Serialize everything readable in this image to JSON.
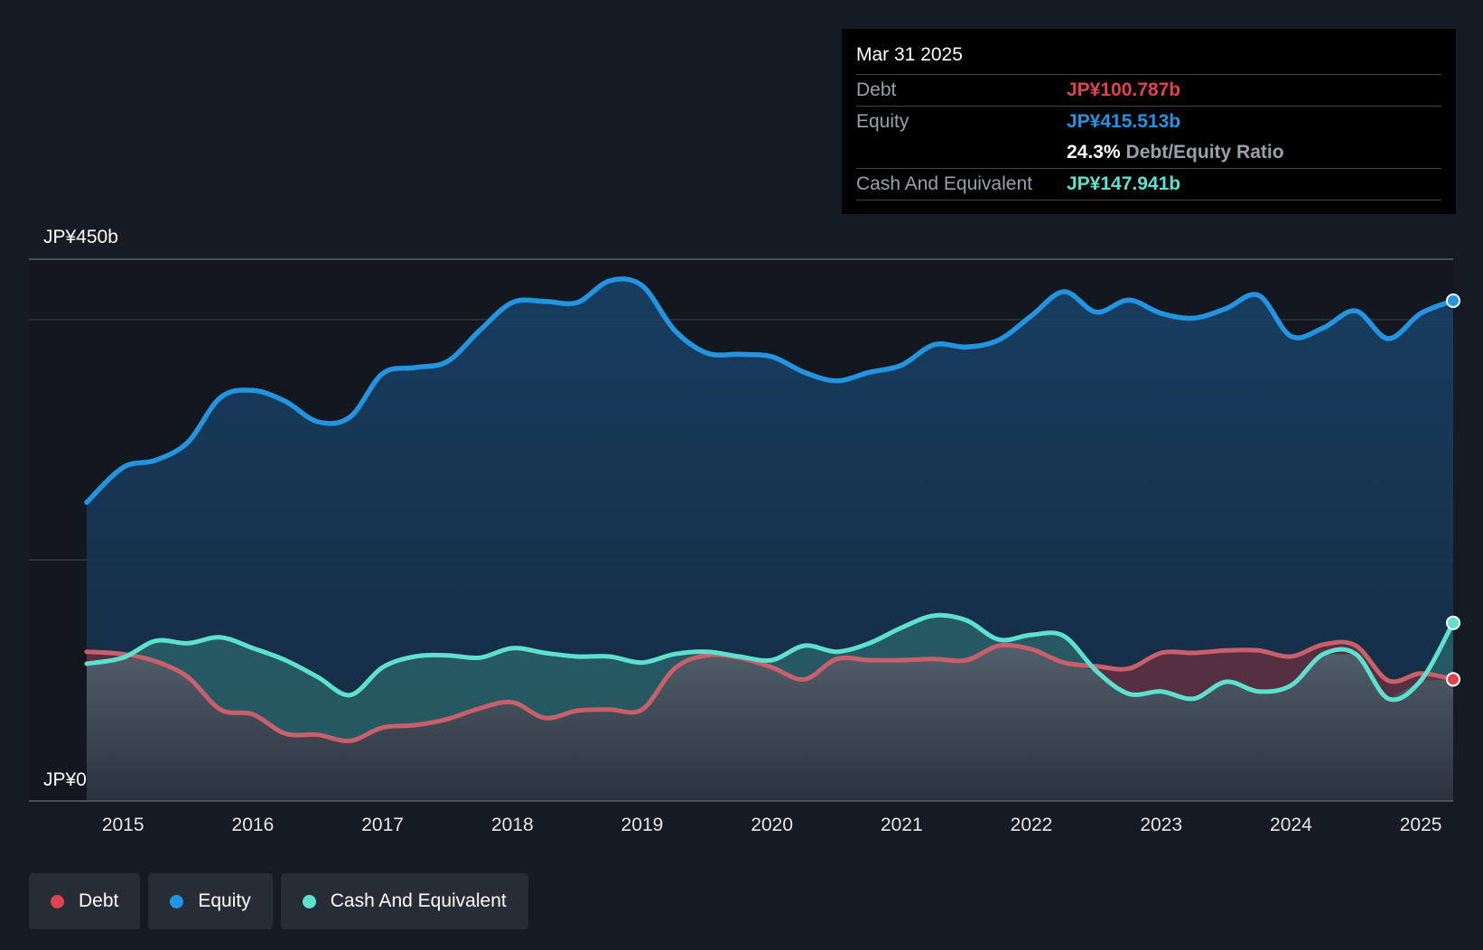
{
  "tooltip": {
    "date": "Mar 31 2025",
    "debt_label": "Debt",
    "debt_value": "JP¥100.787b",
    "equity_label": "Equity",
    "equity_value": "JP¥415.513b",
    "ratio_value": "24.3%",
    "ratio_label": "Debt/Equity Ratio",
    "cash_label": "Cash And Equivalent",
    "cash_value": "JP¥147.941b"
  },
  "legend": [
    {
      "label": "Debt",
      "color": "#e0424f"
    },
    {
      "label": "Equity",
      "color": "#2394df"
    },
    {
      "label": "Cash And Equivalent",
      "color": "#5ee0cf"
    }
  ],
  "chart_data": {
    "type": "area",
    "y_top_label": "JP¥450b",
    "y_bottom_label": "JP¥0",
    "ylim": [
      0,
      450
    ],
    "xlim": [
      2014.72,
      2025.25
    ],
    "x_ticks": [
      {
        "value": 2015,
        "label": "2015"
      },
      {
        "value": 2016,
        "label": "2016"
      },
      {
        "value": 2017,
        "label": "2017"
      },
      {
        "value": 2018,
        "label": "2018"
      },
      {
        "value": 2019,
        "label": "2019"
      },
      {
        "value": 2020,
        "label": "2020"
      },
      {
        "value": 2021,
        "label": "2021"
      },
      {
        "value": 2022,
        "label": "2022"
      },
      {
        "value": 2023,
        "label": "2023"
      },
      {
        "value": 2024,
        "label": "2024"
      },
      {
        "value": 2025,
        "label": "2025"
      }
    ],
    "series": [
      {
        "name": "Equity",
        "color": "#2394df",
        "points": [
          [
            2014.72,
            248
          ],
          [
            2015.0,
            277
          ],
          [
            2015.25,
            283
          ],
          [
            2015.5,
            298
          ],
          [
            2015.75,
            335
          ],
          [
            2016.0,
            341
          ],
          [
            2016.25,
            332
          ],
          [
            2016.5,
            315
          ],
          [
            2016.75,
            319
          ],
          [
            2017.0,
            355
          ],
          [
            2017.25,
            360
          ],
          [
            2017.5,
            365
          ],
          [
            2017.75,
            391
          ],
          [
            2018.0,
            414
          ],
          [
            2018.25,
            415
          ],
          [
            2018.5,
            414
          ],
          [
            2018.75,
            432
          ],
          [
            2019.0,
            428
          ],
          [
            2019.25,
            391
          ],
          [
            2019.5,
            372
          ],
          [
            2019.75,
            371
          ],
          [
            2020.0,
            369
          ],
          [
            2020.25,
            356
          ],
          [
            2020.5,
            349
          ],
          [
            2020.75,
            356
          ],
          [
            2021.0,
            362
          ],
          [
            2021.25,
            379
          ],
          [
            2021.5,
            377
          ],
          [
            2021.75,
            383
          ],
          [
            2022.0,
            403
          ],
          [
            2022.25,
            423
          ],
          [
            2022.5,
            406
          ],
          [
            2022.75,
            416
          ],
          [
            2023.0,
            405
          ],
          [
            2023.25,
            401
          ],
          [
            2023.5,
            409
          ],
          [
            2023.75,
            420
          ],
          [
            2024.0,
            386
          ],
          [
            2024.25,
            393
          ],
          [
            2024.5,
            407
          ],
          [
            2024.75,
            384
          ],
          [
            2025.0,
            405
          ],
          [
            2025.25,
            415.5
          ]
        ]
      },
      {
        "name": "Cash And Equivalent",
        "color": "#5ee0cf",
        "points": [
          [
            2014.72,
            114
          ],
          [
            2015.0,
            119
          ],
          [
            2015.25,
            133
          ],
          [
            2015.5,
            131
          ],
          [
            2015.75,
            136
          ],
          [
            2016.0,
            127
          ],
          [
            2016.25,
            117
          ],
          [
            2016.5,
            103
          ],
          [
            2016.75,
            88
          ],
          [
            2017.0,
            111
          ],
          [
            2017.25,
            120
          ],
          [
            2017.5,
            121
          ],
          [
            2017.75,
            119
          ],
          [
            2018.0,
            127
          ],
          [
            2018.25,
            123
          ],
          [
            2018.5,
            120
          ],
          [
            2018.75,
            120
          ],
          [
            2019.0,
            115
          ],
          [
            2019.25,
            122
          ],
          [
            2019.5,
            124
          ],
          [
            2019.75,
            120
          ],
          [
            2020.0,
            117
          ],
          [
            2020.25,
            129
          ],
          [
            2020.5,
            124
          ],
          [
            2020.75,
            131
          ],
          [
            2021.0,
            144
          ],
          [
            2021.25,
            154
          ],
          [
            2021.5,
            150
          ],
          [
            2021.75,
            134
          ],
          [
            2022.0,
            138
          ],
          [
            2022.25,
            137
          ],
          [
            2022.5,
            108
          ],
          [
            2022.75,
            89
          ],
          [
            2023.0,
            91
          ],
          [
            2023.25,
            85
          ],
          [
            2023.5,
            99
          ],
          [
            2023.75,
            91
          ],
          [
            2024.0,
            96
          ],
          [
            2024.25,
            122
          ],
          [
            2024.5,
            122
          ],
          [
            2024.75,
            85
          ],
          [
            2025.0,
            100
          ],
          [
            2025.25,
            148
          ]
        ]
      },
      {
        "name": "Debt",
        "color": "#e0424f",
        "points": [
          [
            2014.72,
            124
          ],
          [
            2015.0,
            122
          ],
          [
            2015.25,
            116
          ],
          [
            2015.5,
            103
          ],
          [
            2015.75,
            76
          ],
          [
            2016.0,
            72
          ],
          [
            2016.25,
            56
          ],
          [
            2016.5,
            55
          ],
          [
            2016.75,
            50
          ],
          [
            2017.0,
            61
          ],
          [
            2017.25,
            63
          ],
          [
            2017.5,
            68
          ],
          [
            2017.75,
            77
          ],
          [
            2018.0,
            82
          ],
          [
            2018.25,
            69
          ],
          [
            2018.5,
            75
          ],
          [
            2018.75,
            76
          ],
          [
            2019.0,
            76
          ],
          [
            2019.25,
            110
          ],
          [
            2019.5,
            121
          ],
          [
            2019.75,
            119
          ],
          [
            2020.0,
            111
          ],
          [
            2020.25,
            101
          ],
          [
            2020.5,
            118
          ],
          [
            2020.75,
            117
          ],
          [
            2021.0,
            117
          ],
          [
            2021.25,
            118
          ],
          [
            2021.5,
            117
          ],
          [
            2021.75,
            129
          ],
          [
            2022.0,
            126
          ],
          [
            2022.25,
            115
          ],
          [
            2022.5,
            112
          ],
          [
            2022.75,
            110
          ],
          [
            2023.0,
            123
          ],
          [
            2023.25,
            123
          ],
          [
            2023.5,
            125
          ],
          [
            2023.75,
            125
          ],
          [
            2024.0,
            120
          ],
          [
            2024.25,
            130
          ],
          [
            2024.5,
            129
          ],
          [
            2024.75,
            100
          ],
          [
            2025.0,
            106
          ],
          [
            2025.25,
            101
          ]
        ]
      }
    ]
  }
}
